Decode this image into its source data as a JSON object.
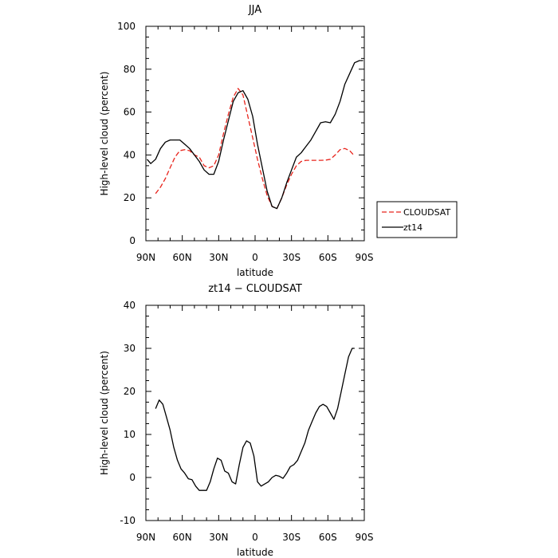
{
  "chart_data": [
    {
      "type": "line",
      "title": "JJA",
      "xlabel": "latitude",
      "ylabel": "High-level cloud (percent)",
      "xlim": [
        90,
        -90
      ],
      "ylim": [
        0,
        100
      ],
      "x_ticks": [
        90,
        60,
        30,
        0,
        -30,
        -60,
        -90
      ],
      "x_tick_labels": [
        "90N",
        "60N",
        "30N",
        "0",
        "30S",
        "60S",
        "90S"
      ],
      "y_ticks": [
        0,
        20,
        40,
        60,
        80,
        100
      ],
      "grid": false,
      "legend_position": "right",
      "series": [
        {
          "name": "CLOUDSAT",
          "color": "#e8241c",
          "dash": "dashed",
          "x": [
            82,
            78,
            74,
            70,
            66,
            62,
            58,
            54,
            50,
            46,
            42,
            38,
            34,
            30,
            26,
            22,
            18,
            14,
            10,
            6,
            2,
            -2,
            -6,
            -10,
            -14,
            -18,
            -22,
            -26,
            -30,
            -34,
            -38,
            -42,
            -46,
            -50,
            -54,
            -58,
            -62,
            -66,
            -70,
            -74,
            -78,
            -82
          ],
          "y": [
            22,
            25,
            29,
            34,
            39,
            42,
            42.5,
            42,
            40,
            39,
            35,
            34,
            35,
            40,
            50,
            59,
            67,
            71,
            68,
            58,
            48,
            38,
            29,
            21,
            16,
            15,
            20,
            26,
            31,
            35,
            37,
            37.5,
            37.5,
            37.5,
            37.5,
            37.6,
            38,
            40,
            42.5,
            43,
            42,
            39.5
          ]
        },
        {
          "name": "zt14",
          "color": "#000000",
          "dash": "solid",
          "x": [
            89,
            86,
            82,
            78,
            74,
            70,
            66,
            62,
            58,
            54,
            50,
            46,
            42,
            38,
            34,
            30,
            26,
            22,
            18,
            14,
            10,
            6,
            2,
            -2,
            -6,
            -10,
            -14,
            -18,
            -22,
            -26,
            -30,
            -34,
            -38,
            -42,
            -46,
            -50,
            -54,
            -58,
            -62,
            -66,
            -70,
            -74,
            -78,
            -82,
            -86,
            -89
          ],
          "y": [
            38,
            36,
            38,
            43,
            46,
            47,
            47,
            47,
            45,
            43,
            40,
            37,
            33,
            31,
            31,
            37,
            47,
            56,
            65,
            69,
            70,
            66,
            58,
            45,
            34,
            23,
            16,
            15,
            20,
            27,
            33,
            39,
            41,
            44,
            47,
            51,
            55,
            55.5,
            55,
            59,
            65,
            73,
            78,
            83,
            84,
            84
          ]
        }
      ]
    },
    {
      "type": "line",
      "title": "zt14 − CLOUDSAT",
      "xlabel": "latitude",
      "ylabel": "High-level cloud (percent)",
      "xlim": [
        90,
        -90
      ],
      "ylim": [
        -10,
        40
      ],
      "x_ticks": [
        90,
        60,
        30,
        0,
        -30,
        -60,
        -90
      ],
      "x_tick_labels": [
        "90N",
        "60N",
        "30N",
        "0",
        "30S",
        "60S",
        "90S"
      ],
      "y_ticks": [
        -10,
        0,
        10,
        20,
        30,
        40
      ],
      "grid": false,
      "series": [
        {
          "color": "#000000",
          "dash": "solid",
          "x": [
            82,
            79,
            76,
            73,
            70,
            67,
            64,
            61,
            58,
            55,
            52,
            49,
            46,
            43,
            40,
            37,
            34,
            31,
            28,
            25,
            22,
            19,
            16,
            13,
            10,
            7,
            4,
            1,
            -2,
            -5,
            -8,
            -11,
            -14,
            -17,
            -20,
            -23,
            -26,
            -29,
            -32,
            -35,
            -38,
            -41,
            -44,
            -47,
            -50,
            -53,
            -56,
            -59,
            -62,
            -65,
            -68,
            -71,
            -74,
            -77,
            -80,
            -82
          ],
          "y": [
            16,
            18,
            17,
            14,
            11,
            7,
            4,
            2,
            1,
            -0.3,
            -0.5,
            -2,
            -3,
            -3,
            -3,
            -1,
            2,
            4.5,
            4,
            1.5,
            1,
            -1,
            -1.5,
            3,
            7,
            8.5,
            8,
            5,
            -1,
            -2,
            -1.5,
            -1,
            0,
            0.5,
            0.3,
            -0.2,
            1,
            2.5,
            3,
            4,
            6,
            8,
            11,
            13,
            15,
            16.5,
            17,
            16.5,
            15,
            13.5,
            16,
            20,
            24,
            28,
            30,
            30
          ]
        }
      ]
    }
  ]
}
